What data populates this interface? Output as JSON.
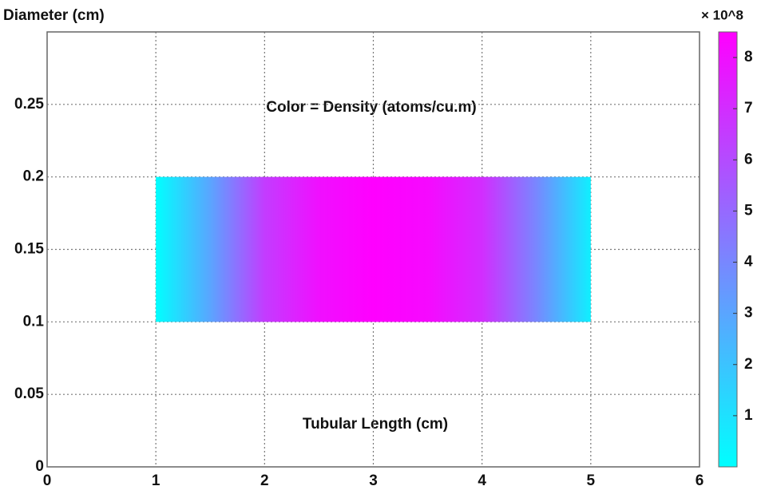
{
  "chart_data": {
    "type": "heatmap",
    "title": "Color = Density (atoms/cu.m)",
    "x_label": "Tubular Length (cm)",
    "y_label": "Diameter (cm)",
    "colorbar_label": "× 10^8",
    "x": [
      1,
      1.5,
      2,
      2.5,
      3,
      3.5,
      4,
      4.5,
      5
    ],
    "values": [
      0,
      3,
      6.5,
      8,
      8.5,
      8.2,
      7,
      4,
      0.5
    ],
    "y_span": [
      0.1,
      0.2
    ],
    "xlim": [
      0,
      6
    ],
    "xticks": [
      0,
      1,
      2,
      3,
      4,
      5,
      6
    ],
    "ylim": [
      0,
      0.3
    ],
    "yticks": [
      0,
      0.05,
      0.1,
      0.15,
      0.2,
      0.25
    ],
    "clim": [
      0,
      8.5
    ],
    "cticks": [
      1,
      2,
      3,
      4,
      5,
      6,
      7,
      8
    ],
    "colormap": [
      "#00ffff",
      "#ff00ff"
    ],
    "grid": true
  }
}
